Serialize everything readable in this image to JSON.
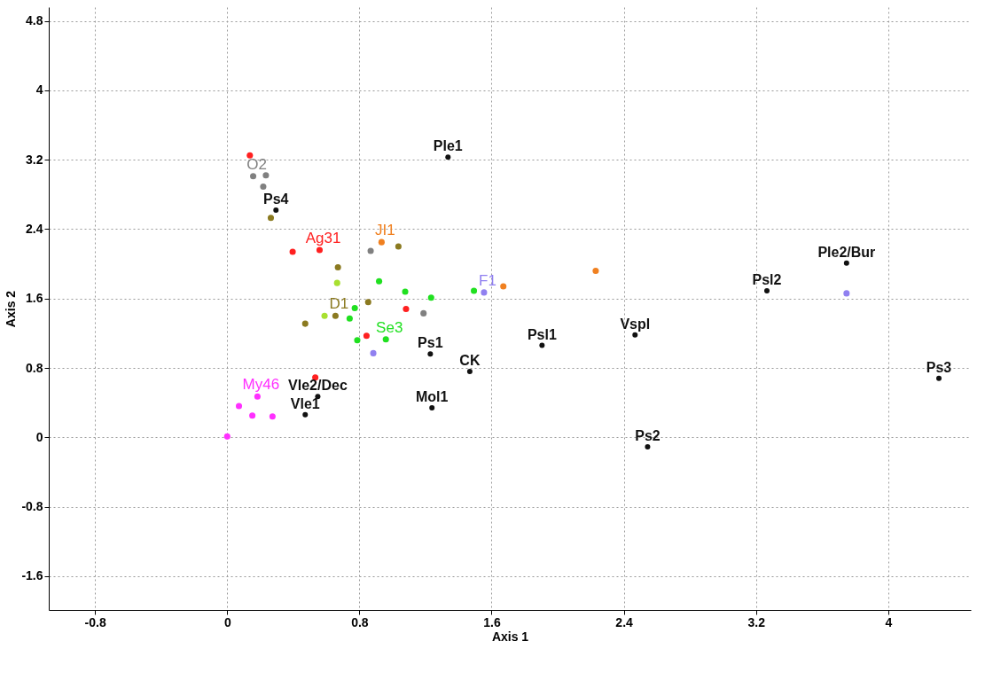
{
  "chart_data": {
    "type": "scatter",
    "xlabel": "Axis 1",
    "ylabel": "Axis 2",
    "xlim": [
      -1.08,
      4.5
    ],
    "ylim": [
      -1.99,
      4.96
    ],
    "xticks": [
      -0.8,
      0,
      0.8,
      1.6,
      2.4,
      3.2,
      4
    ],
    "yticks": [
      -1.6,
      -0.8,
      0,
      0.8,
      1.6,
      2.4,
      3.2,
      4,
      4.8
    ],
    "grid": true,
    "marker": "circle",
    "legend": false,
    "series": [
      {
        "name": "Ag31",
        "color": "#ff2020",
        "x": [
          0.559,
          0.137,
          0.396,
          0.843,
          1.082,
          0.533
        ],
        "values": [
          2.16,
          3.25,
          2.14,
          1.17,
          1.48,
          0.69
        ]
      },
      {
        "name": "O2",
        "color": "#808080",
        "x": [
          0.157,
          0.234,
          0.218,
          0.868,
          1.188
        ],
        "values": [
          3.01,
          3.02,
          2.89,
          2.15,
          1.43
        ]
      },
      {
        "name": "JI1",
        "color": "#f08020",
        "x": [
          0.934,
          1.671,
          2.23
        ],
        "values": [
          2.25,
          1.74,
          1.92
        ]
      },
      {
        "name": "D1",
        "color": "#8b7a20",
        "x": [
          0.655,
          0.264,
          1.036,
          0.67,
          0.853,
          0.472
        ],
        "values": [
          1.4,
          2.53,
          2.2,
          1.96,
          1.56,
          1.31
        ]
      },
      {
        "color": "#a8e030",
        "x": [
          0.665,
          0.589
        ],
        "values": [
          1.78,
          1.4
        ]
      },
      {
        "name": "Se3",
        "color": "#20e020",
        "x": [
          0.96,
          0.919,
          1.077,
          1.234,
          1.493,
          0.772,
          0.741,
          0.787
        ],
        "values": [
          1.13,
          1.8,
          1.68,
          1.61,
          1.69,
          1.49,
          1.37,
          1.12
        ]
      },
      {
        "name": "F1",
        "color": "#9080f0",
        "x": [
          1.554,
          0.884,
          3.748
        ],
        "values": [
          1.67,
          0.97,
          1.66
        ]
      },
      {
        "name": "My46",
        "color": "#ff30ff",
        "x": [
          0.183,
          0.071,
          0.152,
          0.274,
          0
        ],
        "values": [
          0.47,
          0.36,
          0.25,
          0.24,
          0.01
        ]
      },
      {
        "color": "#111111",
        "x": [
          1.336,
          0.295,
          3.266,
          3.748,
          2.468,
          1.905,
          1.229,
          1.468,
          1.239,
          0.548,
          0.472,
          2.544,
          4.307
        ],
        "values": [
          3.23,
          2.62,
          1.69,
          2.01,
          1.18,
          1.06,
          0.96,
          0.76,
          0.34,
          0.47,
          0.26,
          -0.11,
          0.68
        ],
        "value_labels": [
          "Ple1",
          "Ps4",
          "Psl2",
          "Ple2/Bur",
          "Vspl",
          "Psl1",
          "Ps1",
          "CK",
          "Mol1",
          "Vle2/Dec",
          "Vle1",
          "Ps2",
          "Ps3"
        ]
      }
    ]
  }
}
